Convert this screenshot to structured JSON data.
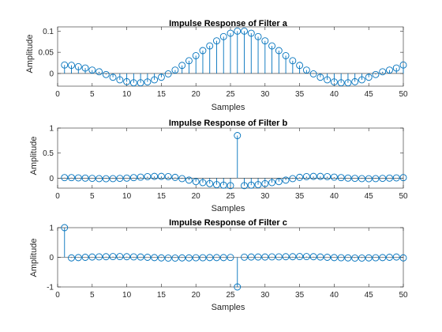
{
  "chart_data": [
    {
      "type": "stem",
      "title": "Impulse Response of Filter a",
      "xlabel": "Samples",
      "ylabel": "Amplitude",
      "xlim": [
        0,
        50
      ],
      "ylim": [
        -0.03,
        0.11
      ],
      "xticks": [
        0,
        5,
        10,
        15,
        20,
        25,
        30,
        35,
        40,
        45,
        50
      ],
      "yticks": [
        0,
        0.05,
        0.1
      ],
      "ytick_labels": [
        "0",
        "0.05",
        "0.1"
      ],
      "x": [
        1,
        2,
        3,
        4,
        5,
        6,
        7,
        8,
        9,
        10,
        11,
        12,
        13,
        14,
        15,
        16,
        17,
        18,
        19,
        20,
        21,
        22,
        23,
        24,
        25,
        26,
        27,
        28,
        29,
        30,
        31,
        32,
        33,
        34,
        35,
        36,
        37,
        38,
        39,
        40,
        41,
        42,
        43,
        44,
        45,
        46,
        47,
        48,
        49,
        50
      ],
      "values": [
        0.02,
        0.0193,
        0.016,
        0.0128,
        0.008,
        0.004,
        -0.0025,
        -0.009,
        -0.015,
        -0.0195,
        -0.022,
        -0.022,
        -0.02,
        -0.015,
        -0.009,
        -0.001,
        0.008,
        0.019,
        0.03,
        0.042,
        0.054,
        0.065,
        0.077,
        0.087,
        0.095,
        0.1,
        0.1,
        0.095,
        0.087,
        0.077,
        0.065,
        0.054,
        0.042,
        0.03,
        0.019,
        0.008,
        -0.001,
        -0.009,
        -0.015,
        -0.02,
        -0.022,
        -0.022,
        -0.0195,
        -0.015,
        -0.009,
        -0.0025,
        0.004,
        0.008,
        0.0128,
        0.02
      ]
    },
    {
      "type": "stem",
      "title": "Impulse Response of Filter b",
      "xlabel": "Samples",
      "ylabel": "Amplitude",
      "xlim": [
        0,
        50
      ],
      "ylim": [
        -0.2,
        1.0
      ],
      "xticks": [
        0,
        5,
        10,
        15,
        20,
        25,
        30,
        35,
        40,
        45,
        50
      ],
      "yticks": [
        0,
        0.5,
        1
      ],
      "ytick_labels": [
        "0",
        "0.5",
        "1"
      ],
      "x": [
        1,
        2,
        3,
        4,
        5,
        6,
        7,
        8,
        9,
        10,
        11,
        12,
        13,
        14,
        15,
        16,
        17,
        18,
        19,
        20,
        21,
        22,
        23,
        24,
        25,
        26,
        27,
        28,
        29,
        30,
        31,
        32,
        33,
        34,
        35,
        36,
        37,
        38,
        39,
        40,
        41,
        42,
        43,
        44,
        45,
        46,
        47,
        48,
        49,
        50
      ],
      "values": [
        0.01,
        0.01,
        0.005,
        0.0,
        -0.005,
        -0.01,
        -0.012,
        -0.01,
        -0.005,
        0.0,
        0.01,
        0.02,
        0.03,
        0.035,
        0.035,
        0.03,
        0.015,
        -0.01,
        -0.04,
        -0.07,
        -0.09,
        -0.11,
        -0.13,
        -0.14,
        -0.15,
        0.85,
        -0.15,
        -0.14,
        -0.13,
        -0.11,
        -0.09,
        -0.07,
        -0.04,
        -0.01,
        0.015,
        0.03,
        0.035,
        0.035,
        0.03,
        0.02,
        0.01,
        0.0,
        -0.005,
        -0.01,
        -0.012,
        -0.01,
        -0.005,
        0.0,
        0.005,
        0.01
      ]
    },
    {
      "type": "stem",
      "title": "Impulse Response of Filter c",
      "xlabel": "Samples",
      "ylabel": "Amplitude",
      "xlim": [
        0,
        50
      ],
      "ylim": [
        -1,
        1
      ],
      "xticks": [
        0,
        5,
        10,
        15,
        20,
        25,
        30,
        35,
        40,
        45,
        50
      ],
      "yticks": [
        -1,
        0,
        1
      ],
      "ytick_labels": [
        "-1",
        "0",
        "1"
      ],
      "x": [
        1,
        2,
        3,
        4,
        5,
        6,
        7,
        8,
        9,
        10,
        11,
        12,
        13,
        14,
        15,
        16,
        17,
        18,
        19,
        20,
        21,
        22,
        23,
        24,
        25,
        26,
        27,
        28,
        29,
        30,
        31,
        32,
        33,
        34,
        35,
        36,
        37,
        38,
        39,
        40,
        41,
        42,
        43,
        44,
        45,
        46,
        47,
        48,
        49,
        50
      ],
      "values": [
        1.0,
        -0.02,
        -0.01,
        0.0,
        0.01,
        0.015,
        0.02,
        0.025,
        0.025,
        0.02,
        0.015,
        0.01,
        0.0,
        -0.01,
        -0.02,
        -0.025,
        -0.025,
        -0.02,
        -0.02,
        -0.015,
        -0.015,
        -0.01,
        -0.01,
        -0.01,
        -0.005,
        -1.0,
        0.005,
        0.01,
        0.01,
        0.01,
        0.015,
        0.015,
        0.02,
        0.02,
        0.025,
        0.025,
        0.02,
        0.01,
        0.0,
        -0.01,
        -0.015,
        -0.02,
        -0.025,
        -0.025,
        -0.02,
        -0.015,
        -0.01,
        0.0,
        0.01,
        -0.02
      ]
    }
  ]
}
